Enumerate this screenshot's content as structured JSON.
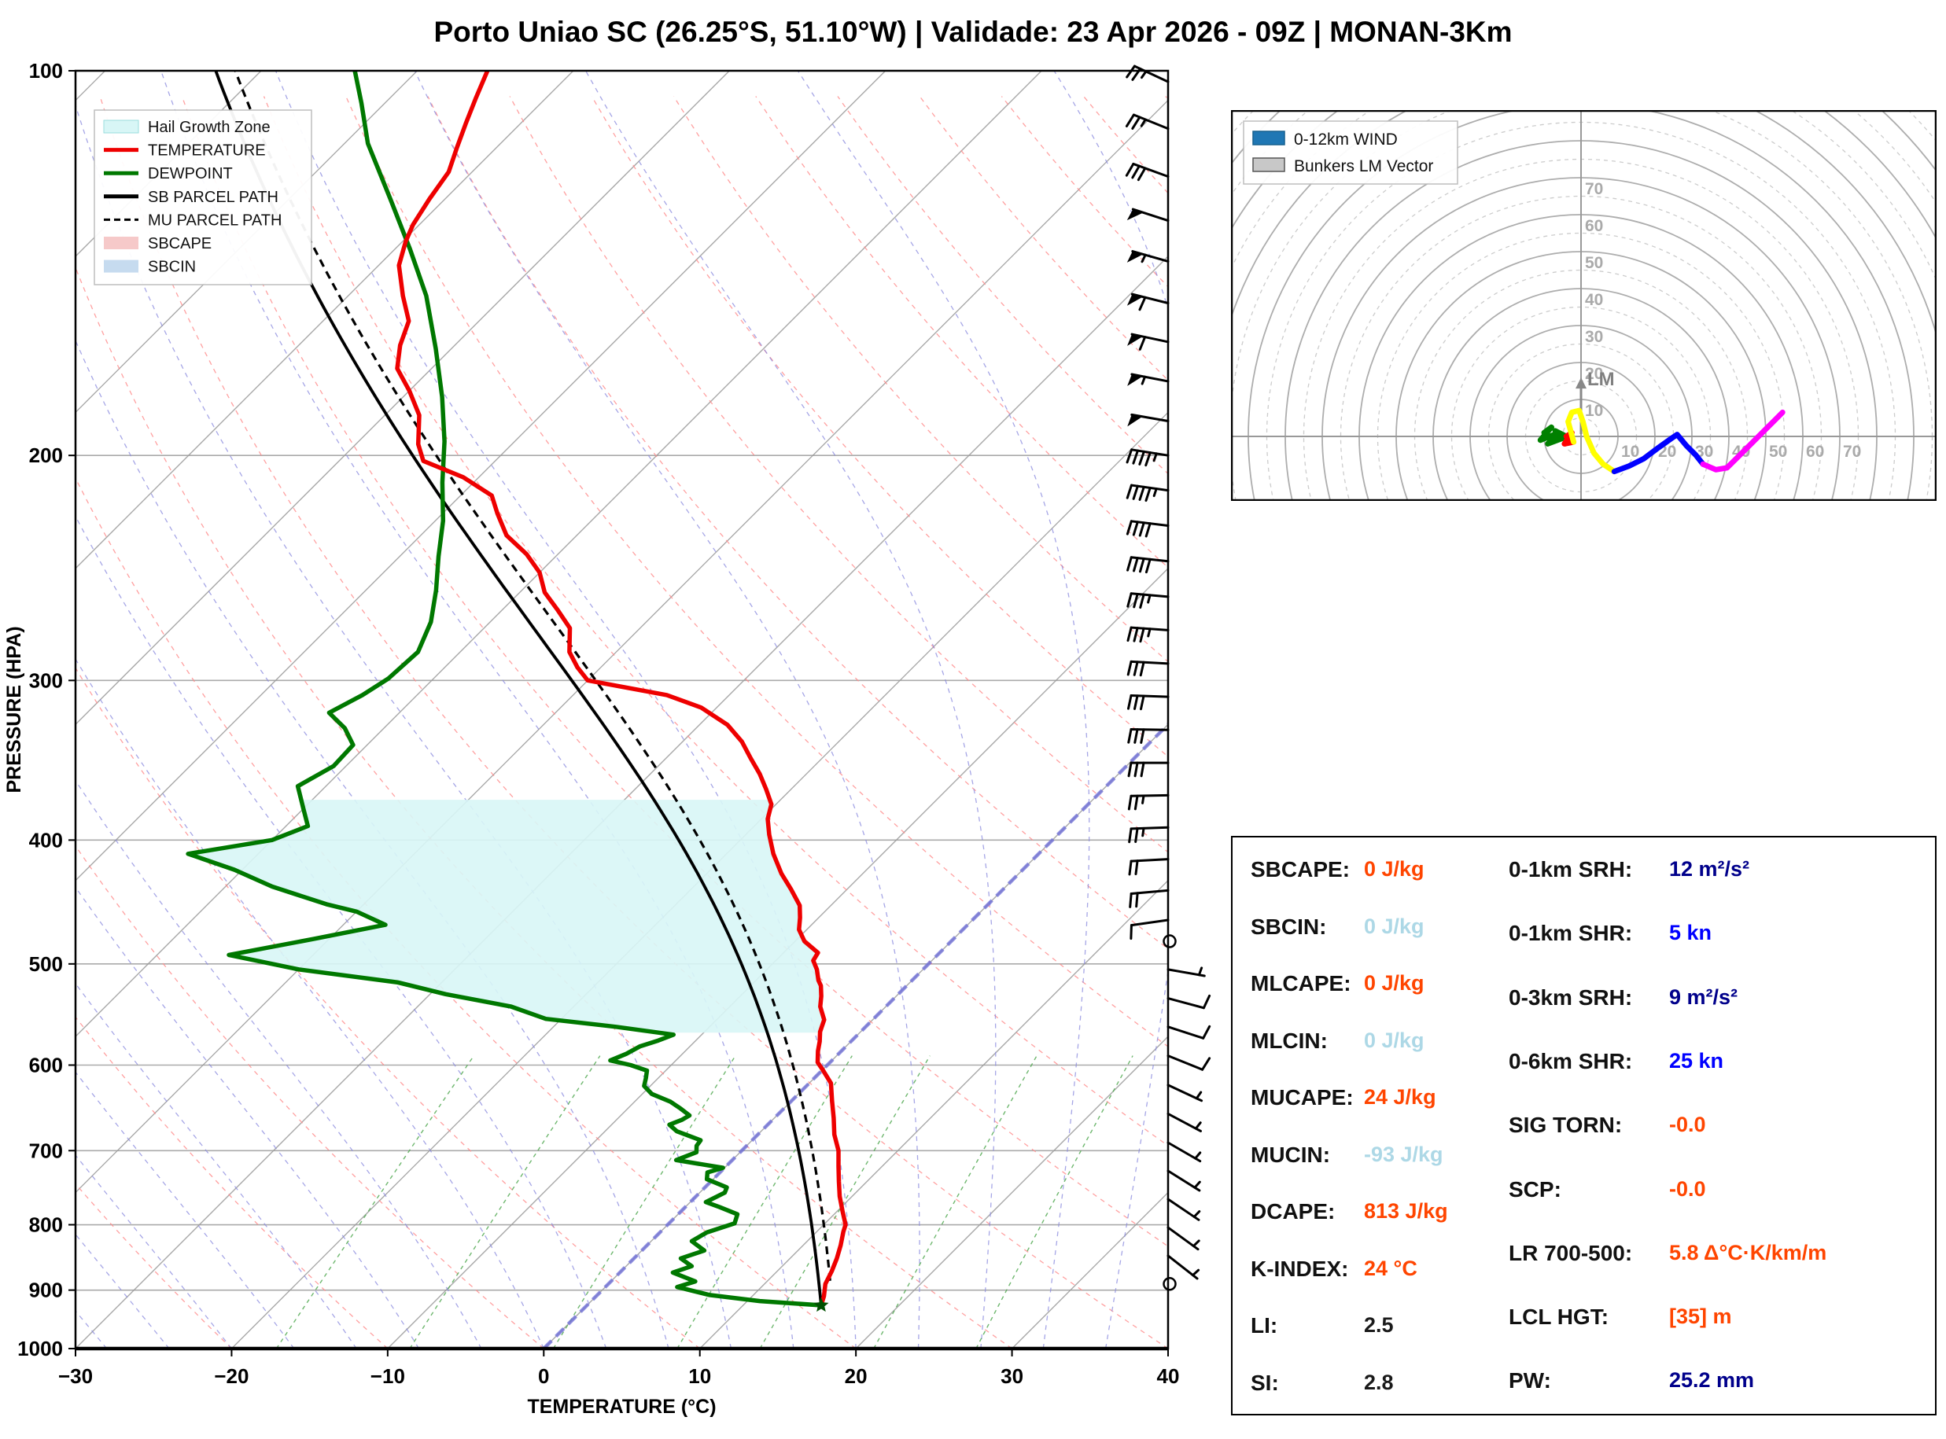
{
  "title": "Porto Uniao SC (26.25°S, 51.10°W) | Validade: 23 Apr 2026 - 09Z | MONAN-3Km",
  "chart_data": {
    "type": "line",
    "skewt": {
      "xlabel": "TEMPERATURE (°C)",
      "ylabel": "PRESSURE (HPA)",
      "x_range": [
        -30,
        40
      ],
      "p_range": [
        100,
        1000
      ],
      "x_tick_vals": [
        -30,
        -20,
        -10,
        0,
        10,
        20,
        30,
        40
      ],
      "x_tick_labels": [
        "−30",
        "−20",
        "−10",
        "0",
        "10",
        "20",
        "30",
        "40"
      ],
      "p_ticks": [
        100,
        200,
        300,
        400,
        500,
        600,
        700,
        800,
        900,
        1000
      ],
      "skew_slope": 1.0,
      "isotherm_step": 10,
      "dry_adiabat_step": 10,
      "moist_adiabat_step": 4,
      "mixing_ratios": [
        1,
        2,
        4,
        7,
        10,
        16,
        24
      ],
      "mixing_ratio_top_p": 590,
      "zero_isotherm_t": 0,
      "hail_zone_p": [
        371,
        566
      ],
      "colors": {
        "temperature": "#ee0000",
        "dewpoint": "#007800",
        "parcel": "#000000",
        "isotherm": "#999999",
        "dry_adiabat": "#ff8888",
        "moist_adiabat": "#8888dd",
        "mixing_ratio": "#55aa55",
        "zero_isotherm": "#7070d8",
        "hail_zone": "#d8f6f6",
        "sbcape_patch": "#f6c9c9",
        "sbcin_patch": "#c6dbef"
      },
      "legend": [
        {
          "label": "Hail Growth Zone",
          "type": "patch",
          "color": "#d8f6f6"
        },
        {
          "label": "TEMPERATURE",
          "type": "line",
          "color": "#ee0000"
        },
        {
          "label": "DEWPOINT",
          "type": "line",
          "color": "#007800"
        },
        {
          "label": "SB PARCEL PATH",
          "type": "line",
          "color": "#000000"
        },
        {
          "label": "MU PARCEL PATH",
          "type": "dash",
          "color": "#000000"
        },
        {
          "label": "SBCAPE",
          "type": "patch",
          "color": "#f6c9c9"
        },
        {
          "label": "SBCIN",
          "type": "patch",
          "color": "#c6dbef"
        }
      ],
      "temperature_profile": [
        [
          925,
          15.0
        ],
        [
          910,
          14.6
        ],
        [
          890,
          13.9
        ],
        [
          870,
          13.5
        ],
        [
          850,
          13.0
        ],
        [
          830,
          12.4
        ],
        [
          810,
          11.7
        ],
        [
          800,
          11.4
        ],
        [
          780,
          10.3
        ],
        [
          760,
          9.2
        ],
        [
          740,
          8.2
        ],
        [
          720,
          7.2
        ],
        [
          700,
          6.2
        ],
        [
          680,
          4.9
        ],
        [
          660,
          3.8
        ],
        [
          640,
          2.6
        ],
        [
          620,
          1.4
        ],
        [
          605,
          0.0
        ],
        [
          597,
          -0.8
        ],
        [
          585,
          -1.5
        ],
        [
          575,
          -2.0
        ],
        [
          565,
          -2.6
        ],
        [
          553,
          -3.1
        ],
        [
          540,
          -4.2
        ],
        [
          530,
          -4.8
        ],
        [
          520,
          -5.5
        ],
        [
          515,
          -6.0
        ],
        [
          505,
          -6.8
        ],
        [
          497,
          -7.6
        ],
        [
          490,
          -7.8
        ],
        [
          480,
          -9.4
        ],
        [
          470,
          -10.5
        ],
        [
          460,
          -11.2
        ],
        [
          450,
          -12.0
        ],
        [
          437,
          -13.6
        ],
        [
          425,
          -15.2
        ],
        [
          410,
          -17.0
        ],
        [
          396,
          -18.5
        ],
        [
          385,
          -19.6
        ],
        [
          375,
          -20.3
        ],
        [
          365,
          -21.6
        ],
        [
          355,
          -23.0
        ],
        [
          345,
          -24.6
        ],
        [
          335,
          -26.2
        ],
        [
          325,
          -28.2
        ],
        [
          315,
          -31.0
        ],
        [
          308,
          -34.0
        ],
        [
          300,
          -40.0
        ],
        [
          293,
          -41.5
        ],
        [
          285,
          -43.0
        ],
        [
          273,
          -44.5
        ],
        [
          264,
          -46.5
        ],
        [
          256,
          -48.4
        ],
        [
          247,
          -50.0
        ],
        [
          239,
          -52.0
        ],
        [
          231,
          -54.5
        ],
        [
          222,
          -56.5
        ],
        [
          215,
          -58.0
        ],
        [
          208,
          -61.0
        ],
        [
          202,
          -64.6
        ],
        [
          196,
          -66.0
        ],
        [
          186,
          -67.8
        ],
        [
          178,
          -70.0
        ],
        [
          171,
          -72.2
        ],
        [
          164,
          -73.5
        ],
        [
          157,
          -74.5
        ],
        [
          150,
          -76.5
        ],
        [
          142,
          -78.7
        ],
        [
          136,
          -79.8
        ],
        [
          132,
          -80.4
        ],
        [
          126,
          -81.0
        ],
        [
          120,
          -81.5
        ],
        [
          115,
          -82.5
        ],
        [
          110,
          -83.5
        ],
        [
          105,
          -84.5
        ],
        [
          100,
          -85.5
        ]
      ],
      "dewpoint_profile": [
        [
          925,
          15.0
        ],
        [
          918,
          10.8
        ],
        [
          908,
          7.2
        ],
        [
          895,
          4.6
        ],
        [
          886,
          5.4
        ],
        [
          872,
          3.4
        ],
        [
          862,
          4.2
        ],
        [
          850,
          3.0
        ],
        [
          838,
          4.0
        ],
        [
          824,
          2.6
        ],
        [
          811,
          3.0
        ],
        [
          798,
          4.2
        ],
        [
          785,
          3.8
        ],
        [
          775,
          2.2
        ],
        [
          768,
          1.0
        ],
        [
          755,
          1.6
        ],
        [
          748,
          1.4
        ],
        [
          737,
          -0.4
        ],
        [
          728,
          -0.8
        ],
        [
          722,
          -0.1
        ],
        [
          712,
          -3.6
        ],
        [
          702,
          -2.8
        ],
        [
          694,
          -3.2
        ],
        [
          687,
          -3.3
        ],
        [
          676,
          -5.4
        ],
        [
          668,
          -6.3
        ],
        [
          662,
          -5.8
        ],
        [
          657,
          -5.6
        ],
        [
          649,
          -6.6
        ],
        [
          641,
          -7.7
        ],
        [
          632,
          -9.4
        ],
        [
          623,
          -10.4
        ],
        [
          614,
          -10.8
        ],
        [
          606,
          -11.2
        ],
        [
          600,
          -12.6
        ],
        [
          595,
          -14.2
        ],
        [
          588,
          -13.6
        ],
        [
          580,
          -13.2
        ],
        [
          574,
          -12.4
        ],
        [
          568,
          -11.8
        ],
        [
          560,
          -16.0
        ],
        [
          552,
          -21.0
        ],
        [
          540,
          -24.0
        ],
        [
          528,
          -29.0
        ],
        [
          517,
          -32.8
        ],
        [
          505,
          -40.0
        ],
        [
          492,
          -45.4
        ],
        [
          478,
          -41.0
        ],
        [
          466,
          -37.3
        ],
        [
          455,
          -40.0
        ],
        [
          449,
          -42.4
        ],
        [
          435,
          -47.0
        ],
        [
          422,
          -50.5
        ],
        [
          410,
          -54.5
        ],
        [
          400,
          -50.0
        ],
        [
          390,
          -48.6
        ],
        [
          378,
          -50.0
        ],
        [
          363,
          -51.8
        ],
        [
          350,
          -50.8
        ],
        [
          337,
          -50.9
        ],
        [
          327,
          -52.5
        ],
        [
          318,
          -54.5
        ],
        [
          308,
          -53.5
        ],
        [
          299,
          -52.9
        ],
        [
          285,
          -52.7
        ],
        [
          270,
          -53.8
        ],
        [
          255,
          -55.5
        ],
        [
          240,
          -57.5
        ],
        [
          225,
          -59.5
        ],
        [
          210,
          -62.0
        ],
        [
          195,
          -64.5
        ],
        [
          180,
          -67.5
        ],
        [
          165,
          -71.0
        ],
        [
          150,
          -75.0
        ],
        [
          138,
          -79.0
        ],
        [
          126,
          -83.5
        ],
        [
          114,
          -88.5
        ],
        [
          106,
          -91.5
        ],
        [
          100,
          -94.0
        ]
      ],
      "sb_parcel_start": [
        925,
        15.0
      ],
      "mu_parcel_start": [
        885,
        14.0
      ],
      "surface_marker": [
        925,
        15.0
      ],
      "wind_barbs": [
        [
          102,
          25,
          295
        ],
        [
          111,
          25,
          292
        ],
        [
          121,
          30,
          290
        ],
        [
          131,
          50,
          288
        ],
        [
          141,
          55,
          286
        ],
        [
          152,
          60,
          284
        ],
        [
          163,
          60,
          282
        ],
        [
          175,
          55,
          281
        ],
        [
          188,
          50,
          280
        ],
        [
          200,
          45,
          279
        ],
        [
          213,
          45,
          278
        ],
        [
          227,
          40,
          277
        ],
        [
          242,
          40,
          276
        ],
        [
          258,
          35,
          275
        ],
        [
          274,
          35,
          274
        ],
        [
          291,
          30,
          273
        ],
        [
          309,
          30,
          272
        ],
        [
          328,
          30,
          271
        ],
        [
          348,
          28,
          270
        ],
        [
          369,
          25,
          269
        ],
        [
          391,
          25,
          268
        ],
        [
          414,
          22,
          267
        ],
        [
          438,
          18,
          265
        ],
        [
          462,
          10,
          262
        ],
        [
          480,
          0,
          0
        ],
        [
          505,
          5,
          100
        ],
        [
          532,
          8,
          105
        ],
        [
          560,
          10,
          108
        ],
        [
          590,
          8,
          112
        ],
        [
          622,
          7,
          115
        ],
        [
          655,
          6,
          118
        ],
        [
          690,
          5,
          120
        ],
        [
          726,
          4,
          122
        ],
        [
          764,
          4,
          124
        ],
        [
          804,
          3,
          126
        ],
        [
          846,
          3,
          128
        ],
        [
          890,
          0,
          0
        ]
      ]
    },
    "hodograph": {
      "ring_step_kn": 10,
      "ring_labels": [
        "10",
        "20",
        "30",
        "40",
        "50",
        "60",
        "70"
      ],
      "lm_marker": {
        "u": 0,
        "v": 15.5,
        "label": "LM"
      },
      "legend": [
        {
          "label": "0-12km WIND",
          "color": "#1f77b4",
          "stroke": "#16608f"
        },
        {
          "label": "Bunkers LM Vector",
          "color": "#c8c8c8",
          "stroke": "#555555"
        }
      ],
      "trace": {
        "green": [
          [
            -10,
            1
          ],
          [
            -8,
            2.5
          ],
          [
            -11,
            -1
          ],
          [
            -6,
            1
          ],
          [
            -9,
            -2
          ],
          [
            -5,
            -0.5
          ],
          [
            -7,
            1.5
          ],
          [
            -4,
            0
          ]
        ],
        "red": [
          [
            -4,
            0
          ],
          [
            -2.5,
            1
          ],
          [
            -4.5,
            -2
          ],
          [
            -2,
            -1.5
          ]
        ],
        "yellow": [
          [
            -2,
            -1.5
          ],
          [
            -3.5,
            4
          ],
          [
            -2.5,
            6.5
          ],
          [
            -0.5,
            7
          ],
          [
            0.5,
            4
          ],
          [
            1.5,
            0
          ],
          [
            3.5,
            -4.5
          ],
          [
            6,
            -7.5
          ],
          [
            9,
            -9.5
          ]
        ],
        "blue": [
          [
            9,
            -9.5
          ],
          [
            13,
            -8
          ],
          [
            17,
            -6
          ],
          [
            21,
            -3
          ],
          [
            24.5,
            -0.5
          ],
          [
            26,
            0.5
          ],
          [
            28.5,
            -2.5
          ],
          [
            31,
            -5
          ],
          [
            33,
            -7.5
          ]
        ],
        "magenta": [
          [
            33,
            -7.5
          ],
          [
            36.5,
            -9
          ],
          [
            39.5,
            -8.5
          ],
          [
            43,
            -5
          ],
          [
            46.5,
            -1.5
          ],
          [
            50,
            2
          ],
          [
            52.5,
            4.5
          ],
          [
            54.5,
            6.5
          ]
        ]
      },
      "trace_colors": {
        "green": "#008000",
        "red": "#ff0000",
        "yellow": "#ffff00",
        "blue": "#0000ff",
        "magenta": "#ff00ff"
      }
    }
  },
  "stats": {
    "left": [
      {
        "label": "SBCAPE:",
        "value": "0 J/kg",
        "color": "#ff4500"
      },
      {
        "label": "SBCIN:",
        "value": "0 J/kg",
        "color": "#add8e6"
      },
      {
        "label": "MLCAPE:",
        "value": "0 J/kg",
        "color": "#ff4500"
      },
      {
        "label": "MLCIN:",
        "value": "0 J/kg",
        "color": "#add8e6"
      },
      {
        "label": "MUCAPE:",
        "value": "24 J/kg",
        "color": "#ff4500"
      },
      {
        "label": "MUCIN:",
        "value": "-93 J/kg",
        "color": "#add8e6"
      },
      {
        "label": "DCAPE:",
        "value": "813 J/kg",
        "color": "#ff4500"
      },
      {
        "label": "K-INDEX:",
        "value": "24 °C",
        "color": "#ff4500"
      },
      {
        "label": "LI:",
        "value": "2.5",
        "color": "#1a1a1a"
      },
      {
        "label": "SI:",
        "value": "2.8",
        "color": "#1a1a1a"
      }
    ],
    "right": [
      {
        "label": "0-1km SRH:",
        "value": "12 m²/s²",
        "color": "#00008b"
      },
      {
        "label": "0-1km SHR:",
        "value": "5 kn",
        "color": "#0000ff"
      },
      {
        "label": "0-3km SRH:",
        "value": "9 m²/s²",
        "color": "#00008b"
      },
      {
        "label": "0-6km SHR:",
        "value": "25 kn",
        "color": "#0000ff"
      },
      {
        "label": "SIG TORN:",
        "value": "-0.0",
        "color": "#ff4500"
      },
      {
        "label": "SCP:",
        "value": "-0.0",
        "color": "#ff4500"
      },
      {
        "label": "LR 700-500:",
        "value": "5.8 Δ°C·K/km/m",
        "color": "#ff4500"
      },
      {
        "label": "LCL HGT:",
        "value": "[35] m",
        "color": "#ff4500"
      },
      {
        "label": "PW:",
        "value": "25.2 mm",
        "color": "#00008b"
      }
    ]
  }
}
